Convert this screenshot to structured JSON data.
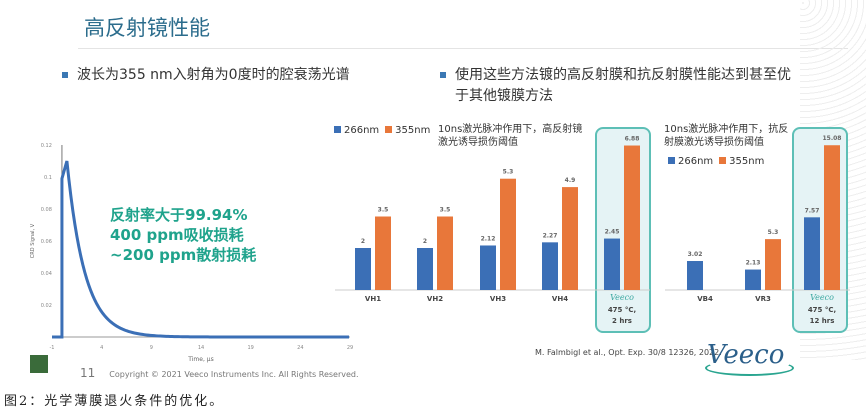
{
  "title": "高反射镜性能",
  "bullets": [
    "波长为355 nm入射角为0度时的腔衰荡光谱",
    "使用这些方法镀的高反射膜和抗反射膜性能达到甚至优于其他镀膜方法"
  ],
  "annotation": [
    "反射率大于99.94%",
    "400 ppm吸收损耗",
    "~200 ppm散射损耗"
  ],
  "footer": {
    "page": "11",
    "copyright": "Copyright © 2021 Veeco Instruments Inc. All Rights Reserved."
  },
  "citation": "M. Falmbigl et al., Opt. Exp. 30/8 12326, 2022.",
  "logo": "Veeco",
  "caption": "图2：光学薄膜退火条件的优化。",
  "colors": {
    "s266": "#3b6fb6",
    "s355": "#e8773a",
    "highlight": "#5dbfb6",
    "annotation": "#1fa38c"
  },
  "chart_data": [
    {
      "type": "line",
      "xlabel": "Time, μs",
      "ylabel": "CRD Signal, V",
      "xticks": [
        "-1",
        "4",
        "9",
        "14",
        "19",
        "24",
        "29"
      ],
      "yticks": [
        "0.12",
        "0.1",
        "0.08",
        "0.06",
        "0.04",
        "0.02"
      ],
      "xlim": [
        -1,
        29
      ],
      "ylim": [
        0,
        0.12
      ],
      "peak": {
        "x": 0.5,
        "y": 0.11
      }
    },
    {
      "type": "bar",
      "title": "10ns激光脉冲作用下，高反射镜激光诱导损伤阈值",
      "categories": [
        "VH1",
        "VH2",
        "VH3",
        "VH4",
        "Veeco"
      ],
      "highlight_note": [
        "475 °C,",
        "2 hrs"
      ],
      "series": [
        {
          "name": "266nm",
          "values": [
            2,
            2,
            2.12,
            2.27,
            2.45
          ]
        },
        {
          "name": "355nm",
          "values": [
            3.5,
            3.5,
            5.3,
            4.9,
            6.88
          ]
        }
      ],
      "labels": [
        [
          "2",
          "2",
          "2.12",
          "2.27",
          "2.45"
        ],
        [
          "3.5",
          "3.5",
          "5.3",
          "4.9",
          "6.88"
        ]
      ]
    },
    {
      "type": "bar",
      "title": "10ns激光脉冲作用下，抗反射膜激光诱导损伤阈值",
      "categories": [
        "VB4",
        "VR3",
        "Veeco"
      ],
      "highlight_note": [
        "475 °C,",
        "12 hrs"
      ],
      "series": [
        {
          "name": "266nm",
          "values": [
            3.02,
            2.13,
            7.57
          ]
        },
        {
          "name": "355nm",
          "values": [
            null,
            5.3,
            15.08
          ]
        }
      ],
      "labels": [
        [
          "3.02",
          "2.13",
          "7.57"
        ],
        [
          "",
          "5.3",
          "15.08"
        ]
      ]
    }
  ]
}
